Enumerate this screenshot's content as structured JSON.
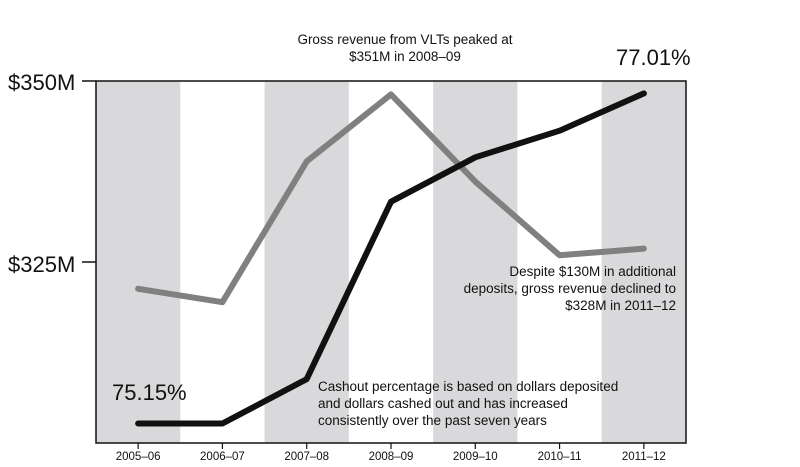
{
  "chart_data": {
    "type": "line",
    "categories": [
      "2005–06",
      "2006–07",
      "2007–08",
      "2008–09",
      "2009–10",
      "2010–11",
      "2011–12"
    ],
    "yticks": [
      "$350M",
      "$325M"
    ],
    "series": [
      {
        "values": [
          322,
          320,
          341,
          351,
          338,
          327,
          328
        ],
        "color": "#808080"
      },
      {
        "values": [
          75.15,
          75.15,
          75.4,
          76.4,
          76.65,
          76.8,
          77.01
        ],
        "color": "#111111"
      }
    ],
    "gross_ylim": [
      299,
      353
    ],
    "cashout_ylim": [
      75.04,
      77.08
    ],
    "labels": {
      "start": "75.15%",
      "end": "77.01%"
    },
    "annotations": {
      "top": "Gross revenue from VLTs peaked at $351M in 2008–09",
      "right": "Despite $130M in additional deposits, gross revenue declined to $328M in 2011–12",
      "bottom": "Cashout percentage is based on dollars deposited and dollars cashed out and has increased consistently over the past seven years"
    },
    "band_color": "#d9d9db"
  }
}
